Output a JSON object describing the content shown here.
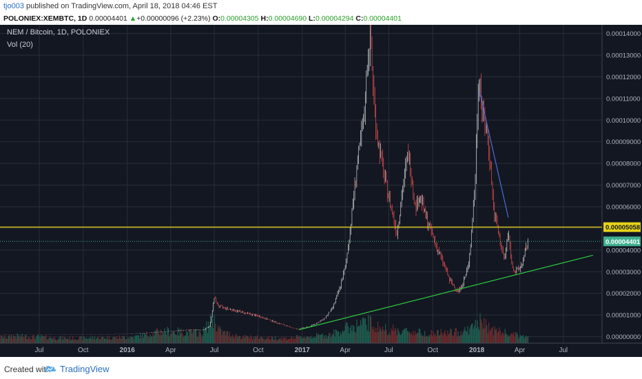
{
  "header": {
    "user": "tjo003",
    "published_text": "published on TradingView.com, April 18, 2018 04:46 EST"
  },
  "ohlc": {
    "symbol": "POLONIEX:XEMBTC, 1D",
    "last": "0.00004401",
    "change_arrow": "▲",
    "change": "+0.00000096 (+2.23%)",
    "o_label": "O:",
    "o": "0.00004305",
    "h_label": "H:",
    "h": "0.00004690",
    "l_label": "L:",
    "l": "0.00004294",
    "c_label": "C:",
    "c": "0.00004401"
  },
  "chart_labels": {
    "title": "NEM / Bitcoin, 1D, POLONIEX",
    "volume": "Vol (20)"
  },
  "colors": {
    "background": "#131722",
    "grid": "#2a2e39",
    "up": "#d6d6d6",
    "down": "#ef5350",
    "volume_up": "#1f5e50",
    "volume_down": "#6e2a2d",
    "resistance": "#e6d31a",
    "support": "#2ecc40",
    "downtrend": "#4a6fd8",
    "last_price": "#3fb08f"
  },
  "chart_data": {
    "type": "candlestick",
    "title": "NEM / Bitcoin, 1D, POLONIEX",
    "x_tick_labels": [
      "Jul",
      "Oct",
      "2016",
      "Apr",
      "Jul",
      "Oct",
      "2017",
      "Apr",
      "Jul",
      "Oct",
      "2018",
      "Apr",
      "Jul"
    ],
    "x_tick_dates": [
      "2015-07-01",
      "2015-10-01",
      "2016-01-01",
      "2016-04-01",
      "2016-07-01",
      "2016-10-01",
      "2017-01-01",
      "2017-04-01",
      "2017-07-01",
      "2017-10-01",
      "2018-01-01",
      "2018-04-01",
      "2018-07-01"
    ],
    "x_range": [
      "2015-04-10",
      "2018-09-20"
    ],
    "y_tick_labels": [
      "0.00000000",
      "0.00001000",
      "0.00002000",
      "0.00003000",
      "0.00004000",
      "0.00005000",
      "0.00006000",
      "0.00007000",
      "0.00008000",
      "0.00009000",
      "0.00010000",
      "0.00011000",
      "0.00012000",
      "0.00013000",
      "0.00014000"
    ],
    "ylim": [
      -3e-06,
      0.000144
    ],
    "price_series": [
      [
        "2015-04-10",
        9e-07
      ],
      [
        "2015-07-01",
        9e-07
      ],
      [
        "2015-10-01",
        1e-06
      ],
      [
        "2016-01-01",
        1.2e-06
      ],
      [
        "2016-03-01",
        2e-06
      ],
      [
        "2016-05-01",
        3e-06
      ],
      [
        "2016-06-10",
        3.2e-06
      ],
      [
        "2016-06-22",
        5e-06
      ],
      [
        "2016-07-01",
        1.8e-05
      ],
      [
        "2016-07-10",
        1.4e-05
      ],
      [
        "2016-08-15",
        1.2e-05
      ],
      [
        "2016-10-01",
        9.5e-06
      ],
      [
        "2016-11-15",
        6e-06
      ],
      [
        "2016-12-20",
        3.5e-06
      ],
      [
        "2017-01-15",
        4.5e-06
      ],
      [
        "2017-02-15",
        8e-06
      ],
      [
        "2017-03-05",
        1.3e-05
      ],
      [
        "2017-03-20",
        2.2e-05
      ],
      [
        "2017-04-01",
        3.2e-05
      ],
      [
        "2017-04-10",
        4.7e-05
      ],
      [
        "2017-04-25",
        7.8e-05
      ],
      [
        "2017-05-10",
        0.0001
      ],
      [
        "2017-05-18",
        0.00013
      ],
      [
        "2017-05-24",
        0.000138
      ],
      [
        "2017-05-28",
        0.00012
      ],
      [
        "2017-06-05",
        9.5e-05
      ],
      [
        "2017-06-15",
        8.2e-05
      ],
      [
        "2017-06-25",
        7e-05
      ],
      [
        "2017-07-10",
        5.6e-05
      ],
      [
        "2017-07-18",
        4.8e-05
      ],
      [
        "2017-07-30",
        6.8e-05
      ],
      [
        "2017-08-10",
        8.5e-05
      ],
      [
        "2017-08-18",
        7.4e-05
      ],
      [
        "2017-08-25",
        6e-05
      ],
      [
        "2017-09-05",
        6.5e-05
      ],
      [
        "2017-09-15",
        5.6e-05
      ],
      [
        "2017-09-25",
        5e-05
      ],
      [
        "2017-10-05",
        4.4e-05
      ],
      [
        "2017-10-15",
        3.8e-05
      ],
      [
        "2017-10-25",
        3.3e-05
      ],
      [
        "2017-11-05",
        2.6e-05
      ],
      [
        "2017-11-15",
        2.3e-05
      ],
      [
        "2017-11-25",
        2.1e-05
      ],
      [
        "2017-12-05",
        2.6e-05
      ],
      [
        "2017-12-15",
        3.3e-05
      ],
      [
        "2017-12-22",
        5.2e-05
      ],
      [
        "2017-12-28",
        6.8e-05
      ],
      [
        "2018-01-04",
        0.000115
      ],
      [
        "2018-01-07",
        0.00012
      ],
      [
        "2018-01-12",
        0.000105
      ],
      [
        "2018-01-18",
        9.8e-05
      ],
      [
        "2018-01-25",
        9e-05
      ],
      [
        "2018-02-01",
        7.2e-05
      ],
      [
        "2018-02-06",
        5.6e-05
      ],
      [
        "2018-02-12",
        5.2e-05
      ],
      [
        "2018-02-20",
        4.2e-05
      ],
      [
        "2018-02-28",
        3.6e-05
      ],
      [
        "2018-03-08",
        4.8e-05
      ],
      [
        "2018-03-15",
        3.4e-05
      ],
      [
        "2018-03-22",
        3e-05
      ],
      [
        "2018-03-30",
        3.1e-05
      ],
      [
        "2018-04-08",
        3.5e-05
      ],
      [
        "2018-04-18",
        4.4e-05
      ]
    ],
    "volume_series": [
      [
        "2015-05-01",
        0.3
      ],
      [
        "2015-09-01",
        0.2
      ],
      [
        "2016-01-15",
        0.25
      ],
      [
        "2016-03-15",
        0.5
      ],
      [
        "2016-06-05",
        0.4
      ],
      [
        "2016-06-28",
        1.0
      ],
      [
        "2016-07-15",
        0.45
      ],
      [
        "2016-09-01",
        0.25
      ],
      [
        "2016-12-01",
        0.2
      ],
      [
        "2017-03-01",
        0.35
      ],
      [
        "2017-04-15",
        0.7
      ],
      [
        "2017-05-20",
        0.85
      ],
      [
        "2017-06-15",
        0.6
      ],
      [
        "2017-08-01",
        0.5
      ],
      [
        "2017-10-01",
        0.4
      ],
      [
        "2017-11-20",
        0.45
      ],
      [
        "2017-12-20",
        0.6
      ],
      [
        "2018-01-05",
        0.9
      ],
      [
        "2018-02-05",
        0.55
      ],
      [
        "2018-03-15",
        0.35
      ],
      [
        "2018-04-15",
        0.25
      ]
    ],
    "horizontal_lines": [
      {
        "label": "0.00005058",
        "value": 5.058e-05,
        "style": "solid",
        "color": "#e6d31a"
      },
      {
        "label": "0.00004401",
        "value": 4.401e-05,
        "style": "dotted",
        "color": "#3fb08f"
      }
    ],
    "trend_lines": [
      {
        "name": "support",
        "from": [
          "2016-12-25",
          3.2e-06
        ],
        "to": [
          "2018-09-01",
          3.76e-05
        ],
        "color": "#2ecc40"
      },
      {
        "name": "downtrend",
        "from": [
          "2018-01-07",
          0.000113
        ],
        "to": [
          "2018-03-08",
          5.5e-05
        ],
        "color": "#4a6fd8"
      }
    ]
  },
  "footer": {
    "created_with": "Created with",
    "brand": "TradingView"
  }
}
